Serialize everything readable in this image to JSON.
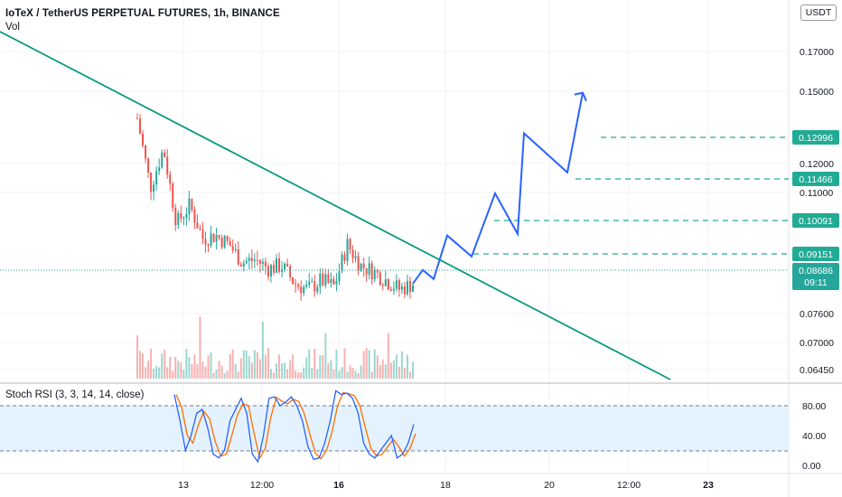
{
  "header": {
    "title": "IoTeX / TetherUS PERPETUAL FUTURES, 1h, BINANCE",
    "volume_label": "Vol",
    "currency": "USDT"
  },
  "rsi_panel": {
    "title": "Stoch RSI (3, 3, 14, 14, close)",
    "ticks": [
      "80.00",
      "40.00",
      "0.00"
    ],
    "band_color": "#e3f2fd",
    "k_color": "#2962ff",
    "d_color": "#ff6d00"
  },
  "colors": {
    "up": "#26a69a",
    "down": "#ef5350",
    "trendline": "#089981",
    "projection": "#2962ff",
    "target_line": "#22ab94",
    "label_green": "#22ab94",
    "label_teal": "#26a69a"
  },
  "chart_data": {
    "type": "candlestick",
    "title": "IoTeX / TetherUS PERPETUAL FUTURES, 1h, BINANCE",
    "x_ticks": [
      "13",
      "12:00",
      "16",
      "18",
      "20",
      "12:00",
      "23"
    ],
    "y_ticks": [
      "0.17000",
      "0.15000",
      "0.12000",
      "0.11000",
      "0.07600",
      "0.07000",
      "0.06450"
    ],
    "price_levels": [
      {
        "label": "0.12996",
        "value": 0.12996
      },
      {
        "label": "0.11466",
        "value": 0.11466
      },
      {
        "label": "0.10091",
        "value": 0.10091
      },
      {
        "label": "0.09151",
        "value": 0.09151
      }
    ],
    "last_price": {
      "label": "0.08686",
      "countdown": "09:11"
    },
    "price_points": [
      0.141,
      0.118,
      0.131,
      0.106,
      0.112,
      0.101,
      0.102,
      0.099,
      0.093,
      0.094,
      0.091,
      0.092,
      0.086,
      0.084,
      0.087,
      0.085,
      0.099,
      0.092,
      0.09,
      0.087,
      0.084,
      0.086
    ],
    "projection_path": [
      0.086,
      0.0905,
      0.0875,
      0.102,
      0.095,
      0.116,
      0.1025,
      0.136,
      0.123,
      0.1495
    ],
    "grid": true,
    "legend": "none"
  }
}
